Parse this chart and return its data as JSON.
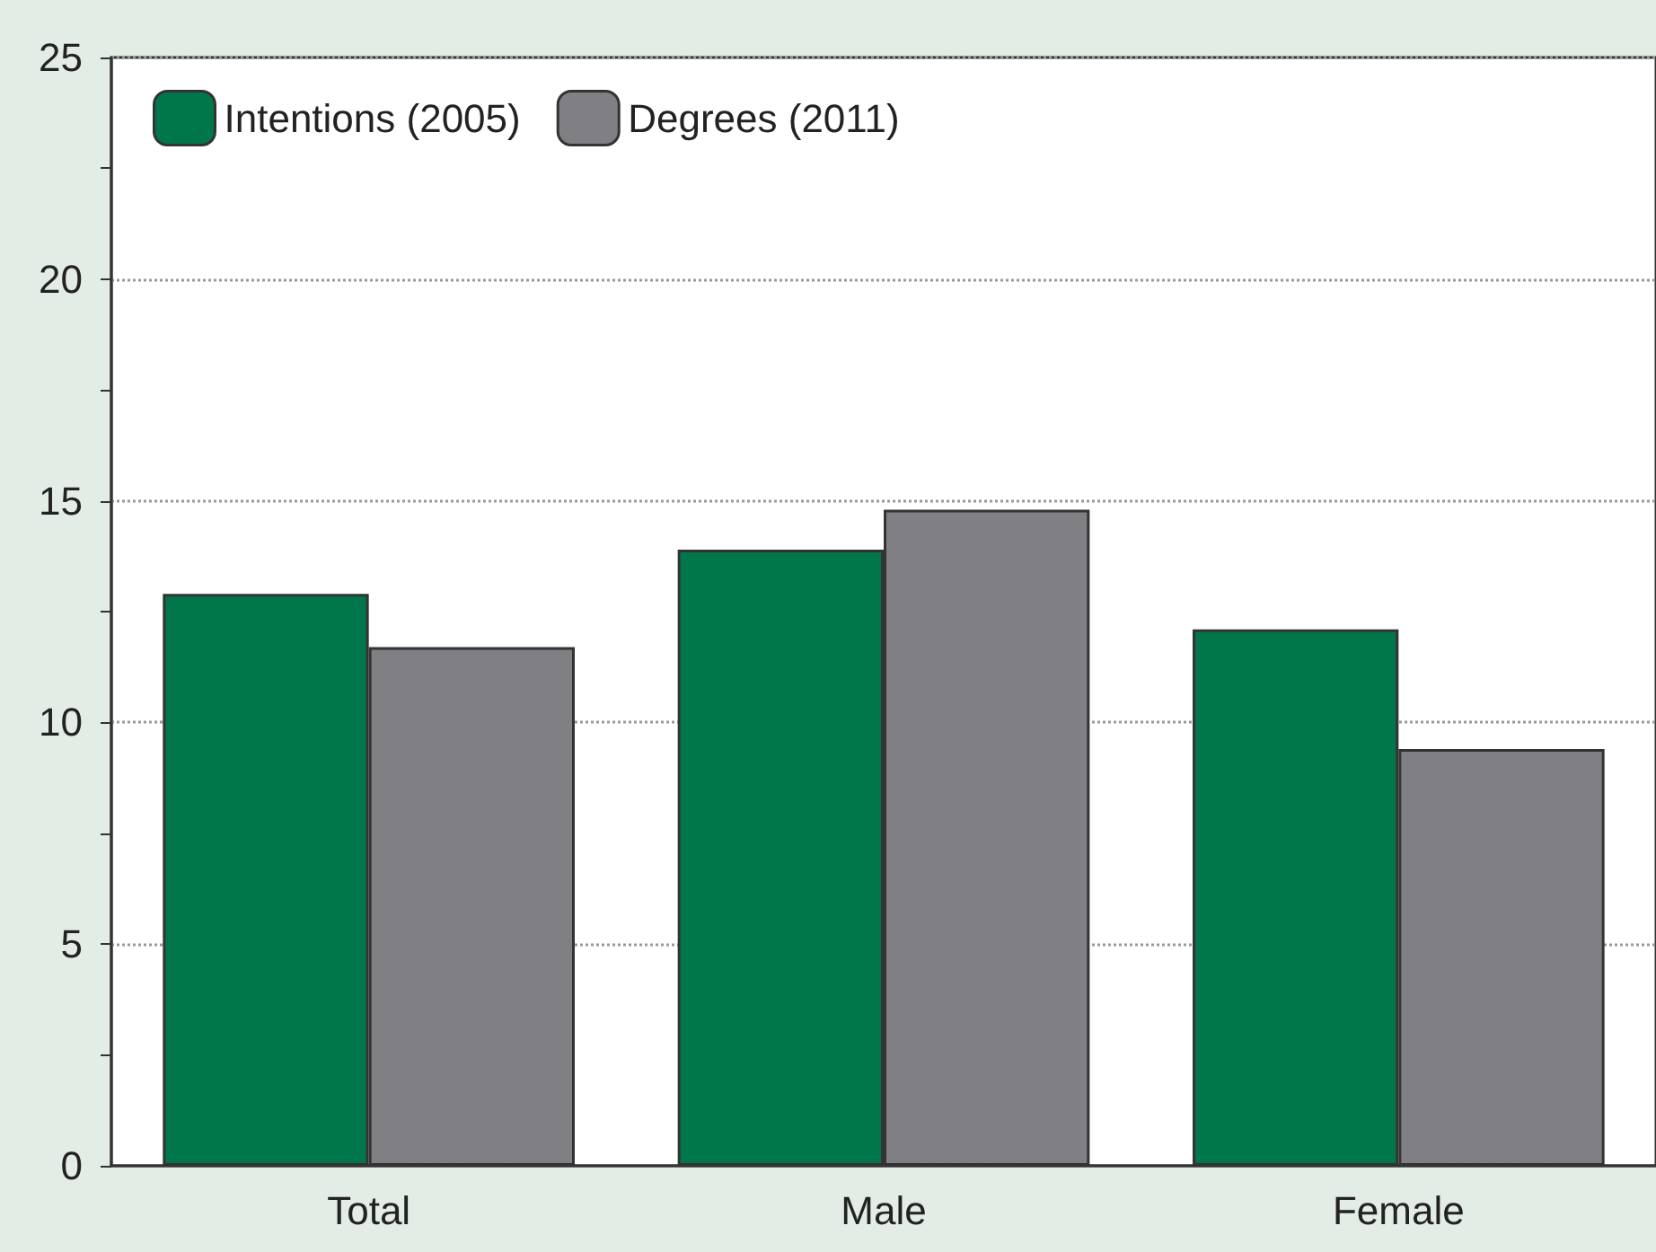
{
  "chart_data": {
    "type": "bar",
    "categories": [
      "Total",
      "Male",
      "Female"
    ],
    "series": [
      {
        "name": "Intentions (2005)",
        "color": "#00774b",
        "values": [
          12.9,
          13.9,
          12.1
        ]
      },
      {
        "name": "Degrees (2011)",
        "color": "#808084",
        "values": [
          11.7,
          14.8,
          9.4
        ]
      }
    ],
    "ylim": [
      0,
      25
    ],
    "yticks": [
      0,
      {
        "value": 2.5,
        "label": null
      },
      5,
      {
        "value": 7.5,
        "label": null
      },
      10,
      {
        "value": 12.5,
        "label": null
      },
      15,
      {
        "value": 17.5,
        "label": null
      },
      20,
      {
        "value": 22.5,
        "label": null
      },
      25
    ],
    "grid": "y",
    "legend": "top left"
  }
}
